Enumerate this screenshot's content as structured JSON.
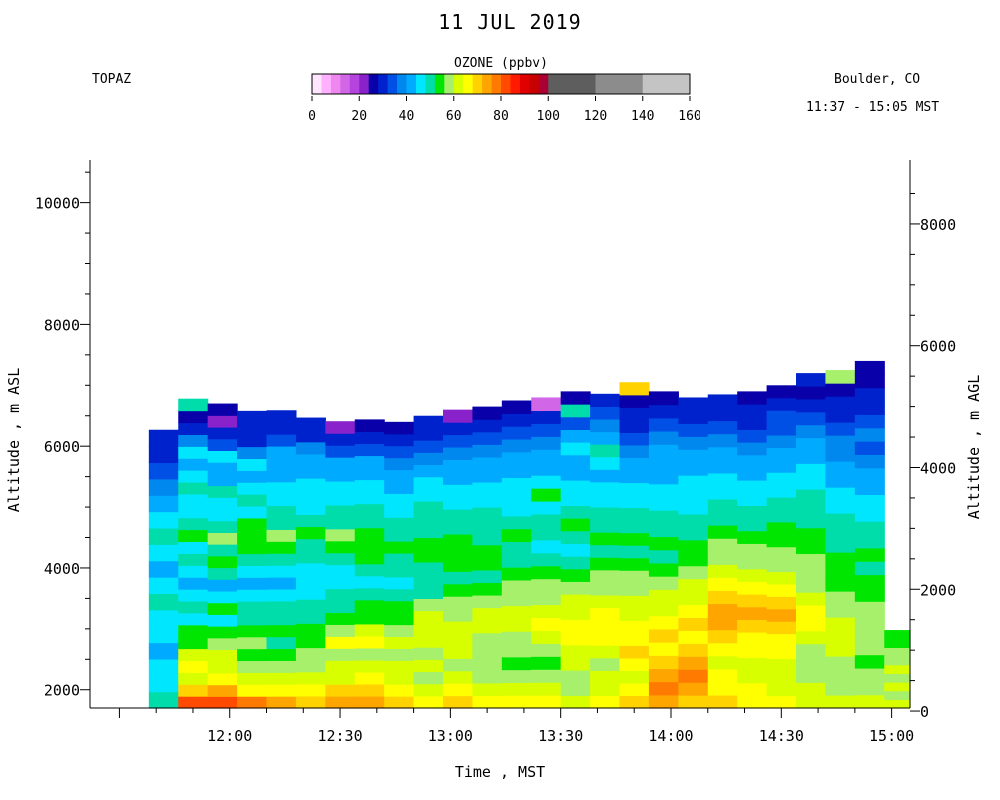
{
  "header": {
    "title": "11 JUL 2019",
    "instrument": "TOPAZ",
    "location": "Boulder, CO",
    "time_range": "11:37 - 15:05 MST"
  },
  "legend": {
    "title": "OZONE (ppbv)",
    "ticks": [
      "0",
      "20",
      "40",
      "60",
      "80",
      "100",
      "120",
      "140",
      "160"
    ],
    "range": [
      0,
      160
    ],
    "bins": [
      {
        "from": 0,
        "to": 4,
        "color": "#ffe6ff"
      },
      {
        "from": 4,
        "to": 8,
        "color": "#ffb0ff"
      },
      {
        "from": 8,
        "to": 12,
        "color": "#ee88ee"
      },
      {
        "from": 12,
        "to": 16,
        "color": "#d166e6"
      },
      {
        "from": 16,
        "to": 20,
        "color": "#b444dd"
      },
      {
        "from": 20,
        "to": 24,
        "color": "#8a22cc"
      },
      {
        "from": 24,
        "to": 28,
        "color": "#0a00aa"
      },
      {
        "from": 28,
        "to": 32,
        "color": "#0022cc"
      },
      {
        "from": 32,
        "to": 36,
        "color": "#0050e6"
      },
      {
        "from": 36,
        "to": 40,
        "color": "#0088ee"
      },
      {
        "from": 40,
        "to": 44,
        "color": "#00aaff"
      },
      {
        "from": 44,
        "to": 48,
        "color": "#00e6ff"
      },
      {
        "from": 48,
        "to": 52,
        "color": "#00dcaa"
      },
      {
        "from": 52,
        "to": 56,
        "color": "#00e600"
      },
      {
        "from": 56,
        "to": 60,
        "color": "#a6f06c"
      },
      {
        "from": 60,
        "to": 64,
        "color": "#d8ff00"
      },
      {
        "from": 64,
        "to": 68,
        "color": "#ffff00"
      },
      {
        "from": 68,
        "to": 72,
        "color": "#ffd200"
      },
      {
        "from": 72,
        "to": 76,
        "color": "#ffa500"
      },
      {
        "from": 76,
        "to": 80,
        "color": "#ff7a00"
      },
      {
        "from": 80,
        "to": 84,
        "color": "#ff4a00"
      },
      {
        "from": 84,
        "to": 88,
        "color": "#ff1a00"
      },
      {
        "from": 88,
        "to": 92,
        "color": "#e00000"
      },
      {
        "from": 92,
        "to": 96,
        "color": "#c80000"
      },
      {
        "from": 96,
        "to": 100,
        "color": "#aa0033"
      },
      {
        "from": 100,
        "to": 120,
        "color": "#5e5e5e"
      },
      {
        "from": 120,
        "to": 140,
        "color": "#8c8c8c"
      },
      {
        "from": 140,
        "to": 160,
        "color": "#c4c4c4"
      }
    ]
  },
  "axes": {
    "xlabel": "Time , MST",
    "ylabel_left": "Altitude , m ASL",
    "ylabel_right": "Altitude , m AGL",
    "x_ticks": [
      "12:00",
      "12:30",
      "13:00",
      "13:30",
      "14:00",
      "14:30",
      "15:00"
    ],
    "y_left_ticks": [
      "2000",
      "4000",
      "6000",
      "8000",
      "10000"
    ],
    "y_right_ticks": [
      "0",
      "2000",
      "4000",
      "6000",
      "8000"
    ]
  },
  "chart_data": {
    "type": "heatmap",
    "title": "11 JUL 2019",
    "xlabel": "Time , MST",
    "ylabel": "Altitude , m ASL",
    "ylabel_right": "Altitude , m AGL",
    "x_unit": "minutes since midnight MST",
    "xlim": [
      682,
      905
    ],
    "ylim_asl": [
      1700,
      10700
    ],
    "surface_altitude_m": 1650,
    "colorbar": {
      "label": "OZONE (ppbv)",
      "range": [
        0,
        160
      ]
    },
    "profiles": [
      {
        "start": "11:38",
        "end": "11:46",
        "top_m": 6270,
        "o3": [
          48,
          44,
          46,
          42,
          46,
          46,
          48,
          44,
          40,
          44,
          48,
          46,
          42,
          36,
          34,
          30,
          28
        ]
      },
      {
        "start": "11:46",
        "end": "11:54",
        "top_m": 6780,
        "o3": [
          80,
          70,
          62,
          66,
          60,
          54,
          52,
          46,
          50,
          44,
          42,
          46,
          48,
          46,
          54,
          50,
          46,
          44,
          48,
          44,
          40,
          44,
          36,
          30,
          26,
          50
        ]
      },
      {
        "start": "11:54",
        "end": "12:02",
        "top_m": 6700,
        "o3": [
          82,
          72,
          64,
          62,
          60,
          56,
          54,
          44,
          52,
          46,
          40,
          48,
          52,
          50,
          56,
          50,
          46,
          44,
          48,
          40,
          42,
          44,
          32,
          28,
          20,
          26
        ]
      },
      {
        "start": "12:02",
        "end": "12:10",
        "top_m": 6580,
        "o3": [
          76,
          66,
          60,
          56,
          54,
          56,
          52,
          48,
          48,
          44,
          42,
          44,
          48,
          54,
          52,
          52,
          46,
          48,
          44,
          40,
          44,
          36,
          30,
          28,
          30
        ]
      },
      {
        "start": "12:10",
        "end": "12:18",
        "top_m": 6590,
        "o3": [
          74,
          66,
          62,
          58,
          54,
          50,
          52,
          48,
          50,
          46,
          40,
          46,
          50,
          54,
          56,
          50,
          48,
          44,
          46,
          42,
          40,
          40,
          34,
          28,
          30
        ]
      },
      {
        "start": "12:18",
        "end": "12:26",
        "top_m": 6470,
        "o3": [
          70,
          66,
          62,
          58,
          56,
          52,
          54,
          50,
          48,
          46,
          44,
          46,
          48,
          50,
          52,
          48,
          46,
          44,
          46,
          40,
          42,
          36,
          30,
          28
        ]
      },
      {
        "start": "12:26",
        "end": "12:34",
        "top_m": 6410,
        "o3": [
          72,
          68,
          62,
          60,
          58,
          64,
          58,
          52,
          50,
          48,
          46,
          46,
          50,
          52,
          56,
          50,
          48,
          46,
          44,
          42,
          40,
          34,
          30,
          22
        ]
      },
      {
        "start": "12:34",
        "end": "12:42",
        "top_m": 6440,
        "o3": [
          74,
          70,
          64,
          62,
          58,
          66,
          60,
          54,
          52,
          48,
          44,
          48,
          52,
          54,
          52,
          50,
          48,
          46,
          44,
          42,
          40,
          34,
          28,
          26
        ]
      },
      {
        "start": "12:42",
        "end": "12:50",
        "top_m": 6400,
        "o3": [
          70,
          66,
          62,
          60,
          58,
          62,
          56,
          54,
          52,
          48,
          46,
          48,
          50,
          52,
          50,
          48,
          46,
          44,
          42,
          40,
          38,
          32,
          28,
          26
        ]
      },
      {
        "start": "12:50",
        "end": "12:58",
        "top_m": 6500,
        "o3": [
          66,
          62,
          56,
          60,
          58,
          60,
          60,
          62,
          56,
          50,
          48,
          50,
          52,
          54,
          50,
          50,
          48,
          46,
          44,
          40,
          38,
          34,
          30,
          28
        ]
      },
      {
        "start": "12:58",
        "end": "13:06",
        "top_m": 6600,
        "o3": [
          68,
          64,
          60,
          58,
          60,
          62,
          62,
          58,
          56,
          52,
          50,
          52,
          54,
          52,
          50,
          48,
          46,
          44,
          42,
          40,
          36,
          32,
          28,
          20
        ]
      },
      {
        "start": "13:06",
        "end": "13:14",
        "top_m": 6650,
        "o3": [
          66,
          62,
          58,
          56,
          58,
          56,
          60,
          60,
          58,
          54,
          50,
          52,
          54,
          50,
          48,
          48,
          44,
          46,
          42,
          40,
          36,
          32,
          28,
          26
        ]
      },
      {
        "start": "13:14",
        "end": "13:22",
        "top_m": 6750,
        "o3": [
          66,
          62,
          56,
          52,
          56,
          58,
          62,
          60,
          58,
          56,
          54,
          48,
          50,
          52,
          48,
          46,
          44,
          46,
          42,
          40,
          36,
          32,
          28,
          24
        ]
      },
      {
        "start": "13:22",
        "end": "13:30",
        "top_m": 6800,
        "o3": [
          64,
          60,
          56,
          54,
          56,
          60,
          64,
          60,
          58,
          56,
          54,
          48,
          46,
          50,
          48,
          46,
          52,
          46,
          42,
          40,
          38,
          32,
          28,
          14
        ]
      },
      {
        "start": "13:30",
        "end": "13:38",
        "top_m": 6900,
        "o3": [
          62,
          58,
          56,
          60,
          62,
          64,
          66,
          62,
          60,
          56,
          54,
          50,
          46,
          50,
          52,
          50,
          46,
          44,
          42,
          40,
          44,
          40,
          32,
          50,
          26
        ]
      },
      {
        "start": "13:38",
        "end": "13:46",
        "top_m": 6860,
        "o3": [
          66,
          62,
          60,
          58,
          62,
          64,
          66,
          64,
          60,
          58,
          56,
          52,
          48,
          52,
          48,
          50,
          46,
          44,
          42,
          44,
          48,
          40,
          36,
          32,
          30
        ]
      },
      {
        "start": "13:46",
        "end": "13:54",
        "top_m": 7050,
        "o3": [
          70,
          66,
          62,
          64,
          68,
          66,
          64,
          62,
          60,
          58,
          56,
          52,
          50,
          52,
          50,
          48,
          46,
          44,
          42,
          40,
          38,
          34,
          30,
          28,
          26,
          68
        ]
      },
      {
        "start": "13:54",
        "end": "14:02",
        "top_m": 6900,
        "o3": [
          72,
          76,
          74,
          70,
          66,
          68,
          64,
          62,
          60,
          58,
          54,
          50,
          52,
          50,
          48,
          46,
          44,
          42,
          40,
          40,
          36,
          32,
          30,
          26
        ]
      },
      {
        "start": "14:02",
        "end": "14:10",
        "top_m": 6800,
        "o3": [
          70,
          72,
          76,
          72,
          68,
          66,
          68,
          64,
          62,
          60,
          58,
          54,
          52,
          50,
          48,
          46,
          44,
          44,
          42,
          40,
          36,
          32,
          30,
          28
        ]
      },
      {
        "start": "14:10",
        "end": "14:18",
        "top_m": 6850,
        "o3": [
          68,
          66,
          64,
          62,
          66,
          68,
          72,
          74,
          70,
          64,
          60,
          58,
          56,
          52,
          50,
          48,
          46,
          44,
          42,
          40,
          38,
          34,
          30,
          28
        ]
      },
      {
        "start": "14:18",
        "end": "14:26",
        "top_m": 6900,
        "o3": [
          66,
          64,
          60,
          62,
          64,
          66,
          70,
          72,
          70,
          64,
          60,
          58,
          56,
          52,
          50,
          48,
          46,
          44,
          42,
          40,
          36,
          34,
          30,
          28,
          26
        ]
      },
      {
        "start": "14:26",
        "end": "14:34",
        "top_m": 7000,
        "o3": [
          64,
          62,
          60,
          62,
          64,
          66,
          68,
          74,
          70,
          64,
          60,
          58,
          56,
          54,
          52,
          50,
          48,
          46,
          44,
          42,
          40,
          36,
          34,
          32,
          28,
          26
        ]
      },
      {
        "start": "14:34",
        "end": "14:42",
        "top_m": 7200,
        "o3": [
          62,
          60,
          58,
          56,
          58,
          62,
          64,
          66,
          62,
          58,
          58,
          56,
          54,
          52,
          50,
          50,
          48,
          46,
          44,
          42,
          40,
          38,
          34,
          30,
          24,
          28
        ]
      },
      {
        "start": "14:42",
        "end": "14:50",
        "top_m": 7250,
        "o3": [
          60,
          58,
          56,
          58,
          60,
          62,
          62,
          58,
          56,
          54,
          54,
          54,
          50,
          50,
          48,
          46,
          44,
          42,
          40,
          38,
          36,
          34,
          30,
          28,
          26,
          56
        ]
      },
      {
        "start": "14:50",
        "end": "14:58",
        "top_m": 7400,
        "o3": [
          60,
          58,
          56,
          54,
          56,
          58,
          58,
          56,
          54,
          52,
          50,
          52,
          50,
          48,
          46,
          44,
          42,
          40,
          38,
          34,
          36,
          32,
          30,
          28,
          26,
          24
        ]
      },
      {
        "start": "14:58",
        "end": "15:05",
        "top_m": 2980,
        "o3": [
          60,
          58,
          62,
          56,
          60,
          58,
          56,
          54,
          52
        ]
      }
    ]
  },
  "colors": {
    "background": "#ffffff",
    "axis": "#000000",
    "no_data": "#ffffff"
  }
}
